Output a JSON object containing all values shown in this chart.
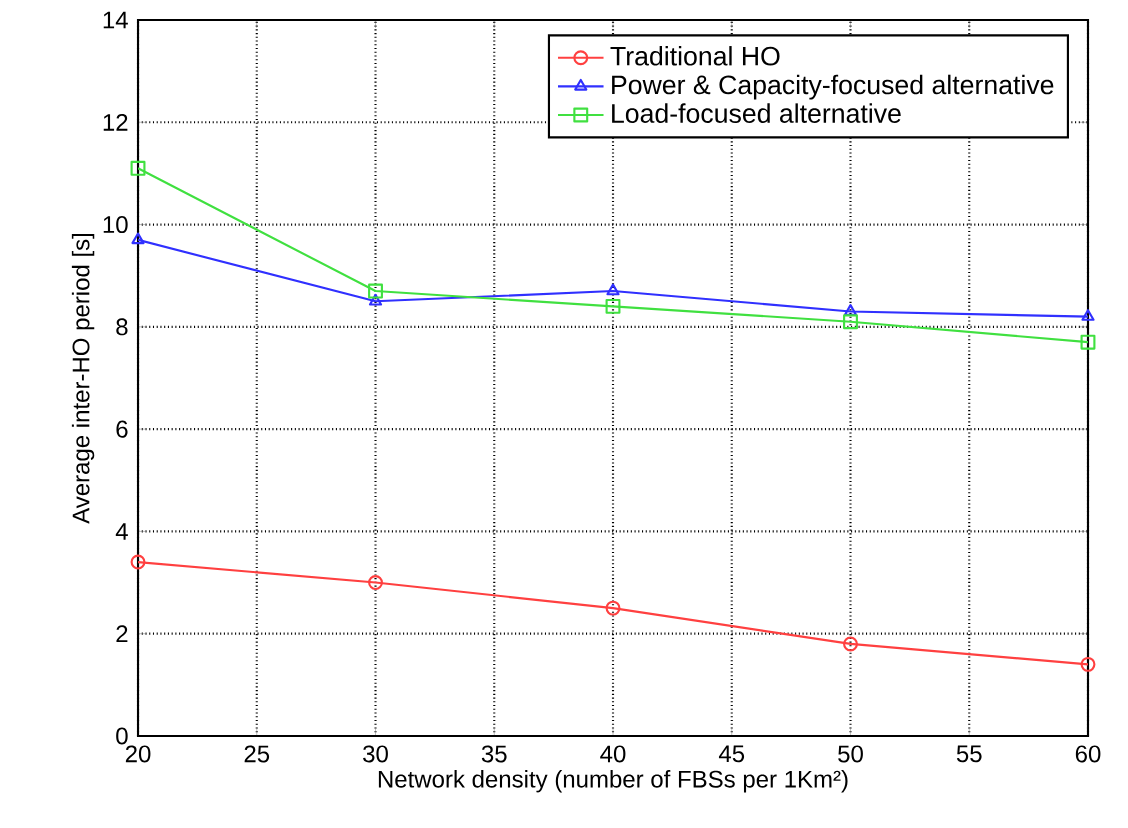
{
  "chart_data": {
    "type": "line",
    "xlabel": "Network density (number of FBSs per 1Km²)",
    "ylabel": "Average inter-HO period [s]",
    "x": [
      20,
      30,
      40,
      50,
      60
    ],
    "series": [
      {
        "name": "Traditional HO",
        "color": "#ff4040",
        "marker": "circle",
        "values": [
          3.4,
          3.0,
          2.5,
          1.8,
          1.4
        ]
      },
      {
        "name": "Power & Capacity-focused alternative",
        "color": "#3030ff",
        "marker": "triangle",
        "values": [
          9.7,
          8.5,
          8.7,
          8.3,
          8.2
        ]
      },
      {
        "name": "Load-focused alternative",
        "color": "#40e040",
        "marker": "square",
        "values": [
          11.1,
          8.7,
          8.4,
          8.1,
          7.7
        ]
      }
    ],
    "xlim": [
      20,
      60
    ],
    "ylim": [
      0,
      14
    ],
    "xticks": [
      20,
      25,
      30,
      35,
      40,
      45,
      50,
      55,
      60
    ],
    "yticks": [
      0,
      2,
      4,
      6,
      8,
      10,
      12,
      14
    ],
    "grid": true,
    "legend": "top right",
    "line_style": "solid"
  }
}
